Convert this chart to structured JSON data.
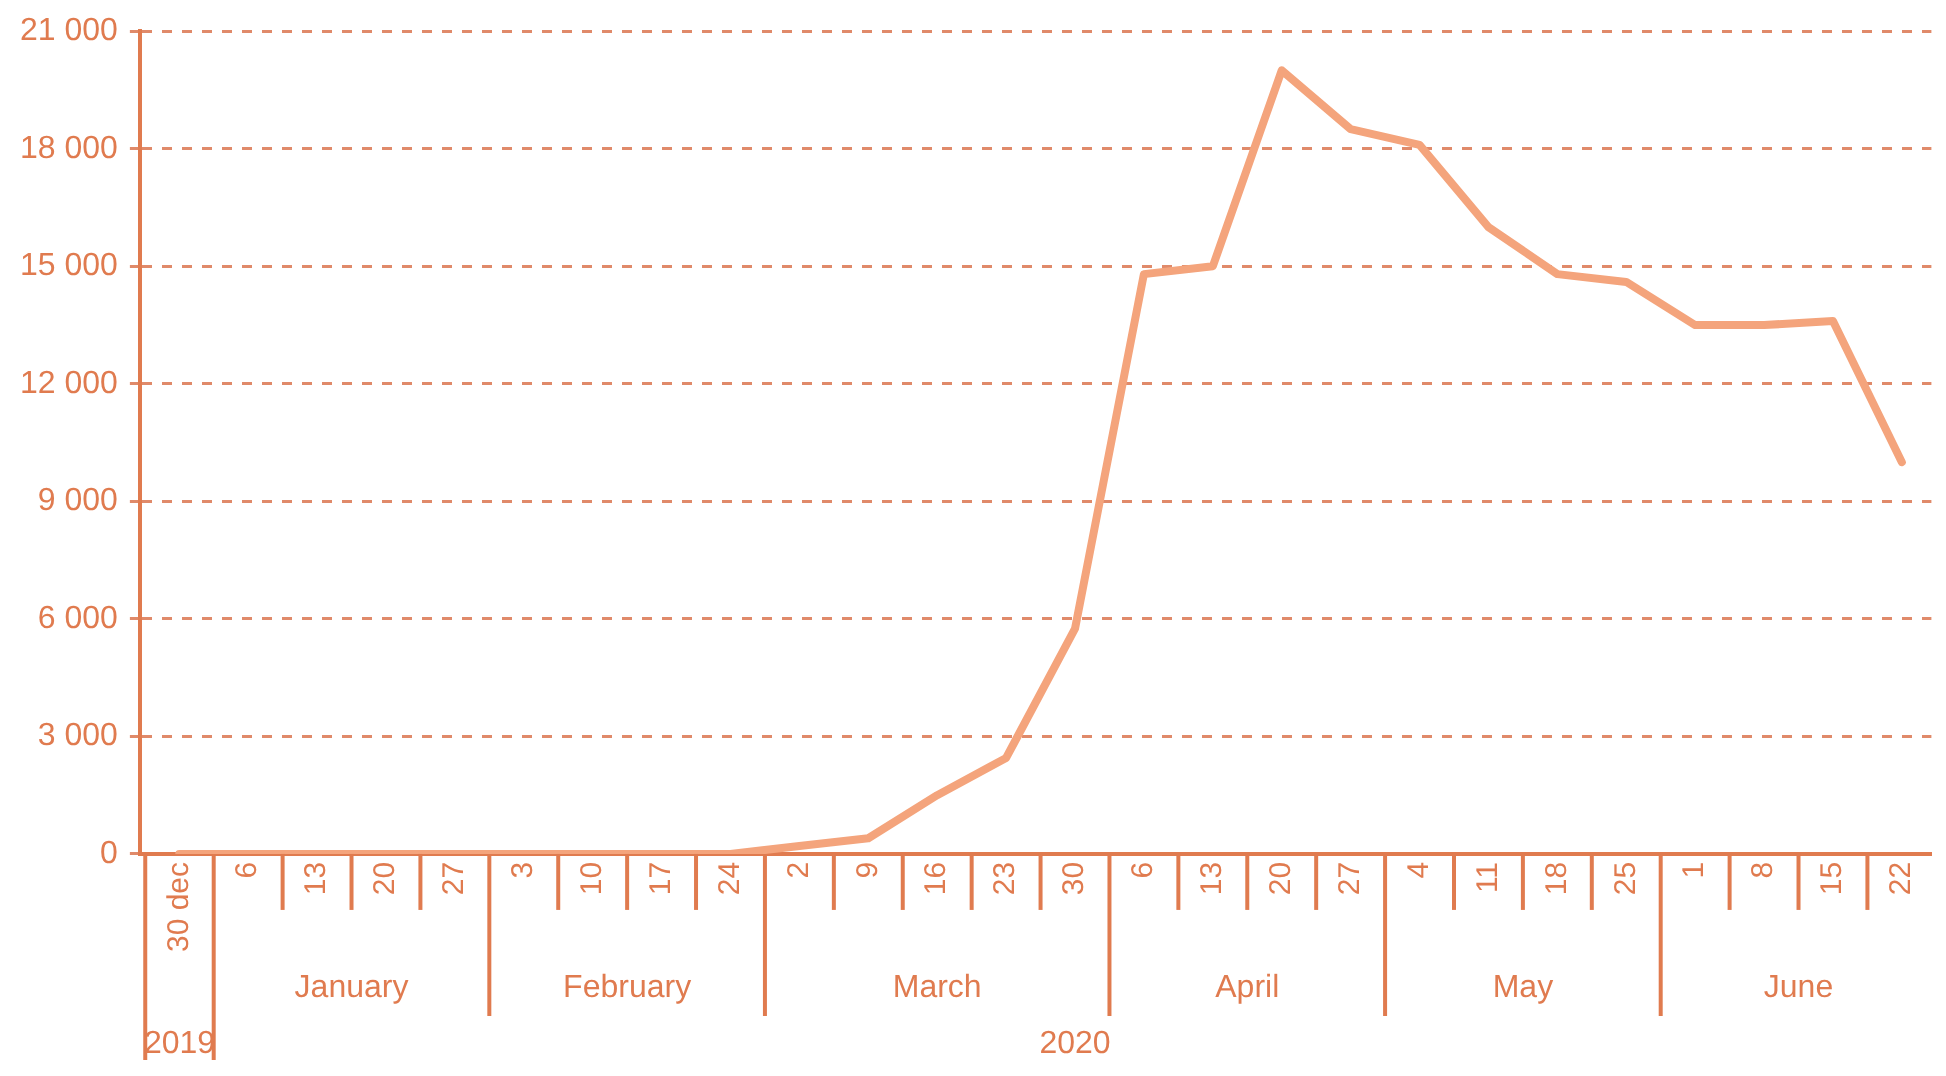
{
  "chart_data": {
    "type": "line",
    "x": [
      "2019-12-30",
      "2020-01-06",
      "2020-01-13",
      "2020-01-20",
      "2020-01-27",
      "2020-02-03",
      "2020-02-10",
      "2020-02-17",
      "2020-02-24",
      "2020-03-02",
      "2020-03-09",
      "2020-03-16",
      "2020-03-23",
      "2020-03-30",
      "2020-04-06",
      "2020-04-13",
      "2020-04-20",
      "2020-04-27",
      "2020-05-04",
      "2020-05-11",
      "2020-05-18",
      "2020-05-25",
      "2020-06-01",
      "2020-06-08",
      "2020-06-15",
      "2020-06-22"
    ],
    "series": [
      {
        "color": "#f4a47c",
        "values": [
          0,
          0,
          0,
          0,
          0,
          0,
          0,
          0,
          0,
          200,
          400,
          1500,
          2450,
          5750,
          14800,
          15000,
          20000,
          18500,
          18100,
          16000,
          14800,
          14600,
          13500,
          13500,
          13600,
          10000
        ]
      }
    ],
    "xlim": [
      "2019-12-26",
      "2020-06-25"
    ],
    "xticks": [
      {
        "value": "2019-12-30",
        "label": "30 dec"
      },
      {
        "value": "2020-01-06",
        "label": "6"
      },
      {
        "value": "2020-01-13",
        "label": "13"
      },
      {
        "value": "2020-01-20",
        "label": "20"
      },
      {
        "value": "2020-01-27",
        "label": "27"
      },
      {
        "value": "2020-02-03",
        "label": "3"
      },
      {
        "value": "2020-02-10",
        "label": "10"
      },
      {
        "value": "2020-02-17",
        "label": "17"
      },
      {
        "value": "2020-02-24",
        "label": "24"
      },
      {
        "value": "2020-03-02",
        "label": "2"
      },
      {
        "value": "2020-03-09",
        "label": "9"
      },
      {
        "value": "2020-03-16",
        "label": "16"
      },
      {
        "value": "2020-03-23",
        "label": "23"
      },
      {
        "value": "2020-03-30",
        "label": "30"
      },
      {
        "value": "2020-04-06",
        "label": "6"
      },
      {
        "value": "2020-04-13",
        "label": "13"
      },
      {
        "value": "2020-04-20",
        "label": "20"
      },
      {
        "value": "2020-04-27",
        "label": "27"
      },
      {
        "value": "2020-05-04",
        "label": "4"
      },
      {
        "value": "2020-05-11",
        "label": "11"
      },
      {
        "value": "2020-05-18",
        "label": "18"
      },
      {
        "value": "2020-05-25",
        "label": "25"
      },
      {
        "value": "2020-06-01",
        "label": "1"
      },
      {
        "value": "2020-06-08",
        "label": "8"
      },
      {
        "value": "2020-06-15",
        "label": "15"
      },
      {
        "value": "2020-06-22",
        "label": "22"
      }
    ],
    "ylim": [
      0,
      21000
    ],
    "yticks": [
      0,
      {
        "value": 3000,
        "label": "3 000"
      },
      {
        "value": 6000,
        "label": "6 000"
      },
      {
        "value": 9000,
        "label": "9 000"
      },
      {
        "value": 12000,
        "label": "12 000"
      },
      {
        "value": 15000,
        "label": "15 000"
      },
      {
        "value": 18000,
        "label": "18 000"
      },
      {
        "value": 21000,
        "label": "21 000"
      }
    ],
    "grid": "y",
    "line_style": "solid",
    "marker": "none",
    "annotations": [
      "January",
      "February",
      "March",
      "April",
      "May",
      "June",
      "2019",
      "2020"
    ]
  }
}
